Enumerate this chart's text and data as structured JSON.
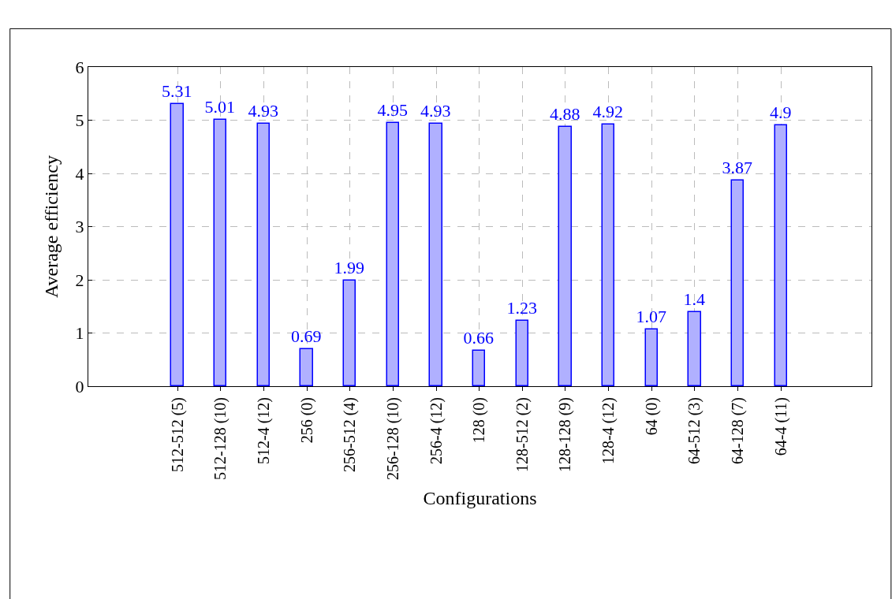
{
  "chart_data": {
    "type": "bar",
    "xlabel": "Configurations",
    "ylabel": "Average efficiency",
    "categories": [
      "512-512 (5)",
      "512-128 (10)",
      "512-4 (12)",
      "256 (0)",
      "256-512 (4)",
      "256-128 (10)",
      "256-4 (12)",
      "128 (0)",
      "128-512 (2)",
      "128-128 (9)",
      "128-4 (12)",
      "64 (0)",
      "64-512 (3)",
      "64-128 (7)",
      "64-4 (11)"
    ],
    "values": [
      5.31,
      5.01,
      4.93,
      0.69,
      1.99,
      4.95,
      4.93,
      0.66,
      1.23,
      4.88,
      4.92,
      1.07,
      1.4,
      3.87,
      4.9
    ],
    "color": "#b0b0ff",
    "ylim": [
      0,
      6
    ],
    "yticks": [
      0,
      1,
      2,
      3,
      4,
      5,
      6
    ],
    "grid": true,
    "data_labels": true
  }
}
